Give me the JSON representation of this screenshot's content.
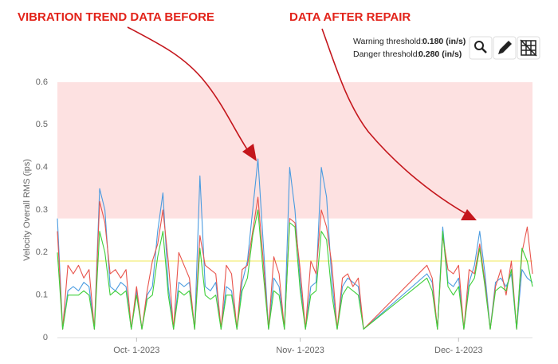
{
  "chart_data": {
    "type": "line",
    "annotations": [
      "VIBRATION TREND DATA BEFORE",
      "DATA AFTER REPAIR"
    ],
    "y_label": "Velocity Overall RMS (ips)",
    "warning_label": "Warning threshold:",
    "warning_threshold": {
      "value": 0.18,
      "label": "0.180 (in/s)"
    },
    "danger_label": "Danger threshold:",
    "danger_threshold": {
      "value": 0.28,
      "label": "0.280 (in/s)"
    },
    "warning_color": "#f3ee7a",
    "danger_color": "#fde1e1",
    "ylim": [
      0,
      0.6
    ],
    "yticks": [
      0,
      0.1,
      0.2,
      0.3,
      0.4,
      0.5,
      0.6
    ],
    "xlim": [
      "2023-09-16",
      "2023-12-15"
    ],
    "xticks": [
      {
        "value": "2023-10-01",
        "label": "Oct- 1-2023"
      },
      {
        "value": "2023-11-01",
        "label": "Nov- 1-2023"
      },
      {
        "value": "2023-12-01",
        "label": "Dec- 1-2023"
      }
    ],
    "grid": false,
    "x": [
      "2023-09-16",
      "2023-09-17",
      "2023-09-18",
      "2023-09-19",
      "2023-09-20",
      "2023-09-21",
      "2023-09-22",
      "2023-09-23",
      "2023-09-24",
      "2023-09-25",
      "2023-09-26",
      "2023-09-27",
      "2023-09-28",
      "2023-09-29",
      "2023-09-30",
      "2023-10-01",
      "2023-10-02",
      "2023-10-03",
      "2023-10-04",
      "2023-10-05",
      "2023-10-06",
      "2023-10-07",
      "2023-10-08",
      "2023-10-09",
      "2023-10-10",
      "2023-10-11",
      "2023-10-12",
      "2023-10-13",
      "2023-10-14",
      "2023-10-15",
      "2023-10-16",
      "2023-10-17",
      "2023-10-18",
      "2023-10-19",
      "2023-10-20",
      "2023-10-21",
      "2023-10-22",
      "2023-10-23",
      "2023-10-24",
      "2023-10-25",
      "2023-10-26",
      "2023-10-27",
      "2023-10-28",
      "2023-10-29",
      "2023-10-30",
      "2023-10-31",
      "2023-11-01",
      "2023-11-02",
      "2023-11-03",
      "2023-11-04",
      "2023-11-05",
      "2023-11-06",
      "2023-11-07",
      "2023-11-08",
      "2023-11-09",
      "2023-11-10",
      "2023-11-11",
      "2023-11-12",
      "2023-11-13",
      "2023-11-25",
      "2023-11-26",
      "2023-11-27",
      "2023-11-28",
      "2023-11-29",
      "2023-11-30",
      "2023-12-01",
      "2023-12-02",
      "2023-12-03",
      "2023-12-04",
      "2023-12-05",
      "2023-12-06",
      "2023-12-07",
      "2023-12-08",
      "2023-12-09",
      "2023-12-10",
      "2023-12-11",
      "2023-12-12",
      "2023-12-13",
      "2023-12-14",
      "2023-12-15"
    ],
    "series": [
      {
        "color": "#4a9be0",
        "values": [
          0.28,
          0.02,
          0.11,
          0.12,
          0.11,
          0.13,
          0.12,
          0.02,
          0.35,
          0.3,
          0.12,
          0.11,
          0.13,
          0.12,
          0.02,
          0.11,
          0.02,
          0.1,
          0.12,
          0.25,
          0.34,
          0.12,
          0.02,
          0.13,
          0.12,
          0.13,
          0.02,
          0.38,
          0.12,
          0.11,
          0.13,
          0.02,
          0.12,
          0.11,
          0.02,
          0.13,
          0.18,
          0.3,
          0.42,
          0.22,
          0.02,
          0.14,
          0.12,
          0.02,
          0.4,
          0.3,
          0.13,
          0.02,
          0.12,
          0.13,
          0.4,
          0.33,
          0.13,
          0.02,
          0.12,
          0.14,
          0.13,
          0.12,
          0.02,
          0.15,
          0.13,
          0.02,
          0.26,
          0.13,
          0.12,
          0.14,
          0.02,
          0.13,
          0.17,
          0.25,
          0.15,
          0.02,
          0.13,
          0.14,
          0.12,
          0.15,
          0.02,
          0.16,
          0.14,
          0.13
        ]
      },
      {
        "color": "#e8544c",
        "values": [
          0.25,
          0.02,
          0.17,
          0.15,
          0.17,
          0.14,
          0.16,
          0.02,
          0.32,
          0.27,
          0.15,
          0.16,
          0.14,
          0.16,
          0.02,
          0.12,
          0.02,
          0.11,
          0.18,
          0.22,
          0.3,
          0.18,
          0.02,
          0.2,
          0.17,
          0.14,
          0.02,
          0.24,
          0.17,
          0.16,
          0.15,
          0.02,
          0.17,
          0.15,
          0.02,
          0.16,
          0.17,
          0.25,
          0.33,
          0.18,
          0.02,
          0.19,
          0.15,
          0.02,
          0.28,
          0.27,
          0.16,
          0.02,
          0.18,
          0.15,
          0.3,
          0.26,
          0.17,
          0.02,
          0.14,
          0.15,
          0.12,
          0.14,
          0.02,
          0.17,
          0.14,
          0.02,
          0.24,
          0.16,
          0.15,
          0.17,
          0.02,
          0.16,
          0.15,
          0.22,
          0.13,
          0.02,
          0.12,
          0.16,
          0.1,
          0.18,
          0.02,
          0.2,
          0.26,
          0.15
        ]
      },
      {
        "color": "#3fcf3a",
        "values": [
          0.2,
          0.02,
          0.1,
          0.1,
          0.1,
          0.11,
          0.1,
          0.02,
          0.25,
          0.2,
          0.1,
          0.11,
          0.1,
          0.11,
          0.02,
          0.1,
          0.02,
          0.09,
          0.1,
          0.19,
          0.25,
          0.1,
          0.02,
          0.11,
          0.1,
          0.11,
          0.02,
          0.21,
          0.1,
          0.09,
          0.1,
          0.02,
          0.1,
          0.1,
          0.02,
          0.11,
          0.14,
          0.24,
          0.3,
          0.15,
          0.02,
          0.11,
          0.1,
          0.02,
          0.27,
          0.26,
          0.11,
          0.02,
          0.1,
          0.11,
          0.25,
          0.23,
          0.1,
          0.02,
          0.1,
          0.12,
          0.11,
          0.1,
          0.02,
          0.14,
          0.11,
          0.02,
          0.25,
          0.12,
          0.1,
          0.12,
          0.02,
          0.12,
          0.14,
          0.21,
          0.12,
          0.02,
          0.11,
          0.12,
          0.11,
          0.16,
          0.02,
          0.21,
          0.18,
          0.12
        ]
      }
    ]
  }
}
